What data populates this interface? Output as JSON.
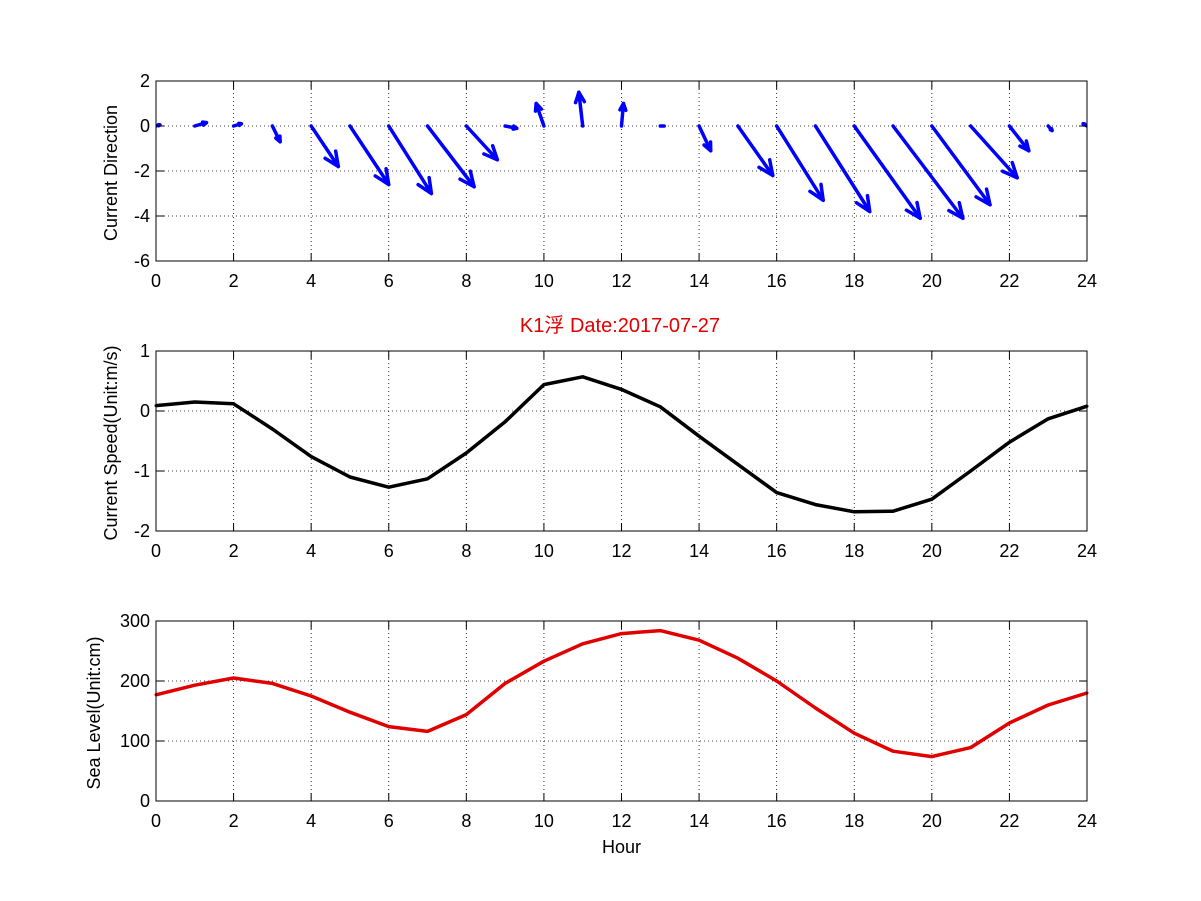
{
  "figure": {
    "title": "K1浮    Date:2017-07-27",
    "title_color": "#e00000"
  },
  "chart_data": [
    {
      "type": "quiver",
      "ylabel": "Current Direction",
      "xlabel": "",
      "xlim": [
        0,
        24
      ],
      "ylim": [
        -6,
        2
      ],
      "xticks": [
        0,
        2,
        4,
        6,
        8,
        10,
        12,
        14,
        16,
        18,
        20,
        22,
        24
      ],
      "yticks": [
        -6,
        -4,
        -2,
        0,
        2
      ],
      "grid": true,
      "color": "#0000ff",
      "x": [
        0,
        1,
        2,
        3,
        4,
        5,
        6,
        7,
        8,
        9,
        10,
        11,
        12,
        13,
        14,
        15,
        16,
        17,
        18,
        19,
        20,
        21,
        22,
        23,
        24
      ],
      "u": [
        0.1,
        0.3,
        0.2,
        0.2,
        0.7,
        1.0,
        1.1,
        1.2,
        0.8,
        0.3,
        -0.2,
        -0.1,
        0.05,
        0.1,
        0.3,
        0.9,
        1.2,
        1.4,
        1.7,
        1.8,
        1.5,
        1.2,
        0.5,
        0.1,
        -0.1
      ],
      "v": [
        0.05,
        0.15,
        0.1,
        -0.7,
        -1.8,
        -2.6,
        -3.0,
        -2.7,
        -1.5,
        -0.1,
        1.0,
        1.5,
        1.0,
        0.0,
        -1.1,
        -2.2,
        -3.3,
        -3.8,
        -4.1,
        -4.1,
        -3.5,
        -2.3,
        -1.1,
        -0.2,
        0.1
      ]
    },
    {
      "type": "line",
      "ylabel": "Current Speed(Unit:m/s)",
      "xlabel": "",
      "xlim": [
        0,
        24
      ],
      "ylim": [
        -2,
        1
      ],
      "xticks": [
        0,
        2,
        4,
        6,
        8,
        10,
        12,
        14,
        16,
        18,
        20,
        22,
        24
      ],
      "yticks": [
        -2,
        -1,
        0,
        1
      ],
      "grid": true,
      "color": "#000000",
      "x": [
        0,
        1,
        2,
        3,
        4,
        5,
        6,
        7,
        8,
        9,
        10,
        11,
        12,
        13,
        14,
        15,
        16,
        17,
        18,
        19,
        20,
        21,
        22,
        23,
        24
      ],
      "values": [
        0.09,
        0.15,
        0.12,
        -0.3,
        -0.76,
        -1.1,
        -1.27,
        -1.13,
        -0.7,
        -0.18,
        0.44,
        0.57,
        0.36,
        0.07,
        -0.42,
        -0.89,
        -1.36,
        -1.56,
        -1.68,
        -1.67,
        -1.47,
        -1.0,
        -0.52,
        -0.13,
        0.08
      ]
    },
    {
      "type": "line",
      "ylabel": "Sea Level(Unit:cm)",
      "xlabel": "Hour",
      "xlim": [
        0,
        24
      ],
      "ylim": [
        0,
        300
      ],
      "xticks": [
        0,
        2,
        4,
        6,
        8,
        10,
        12,
        14,
        16,
        18,
        20,
        22,
        24
      ],
      "yticks": [
        0,
        100,
        200,
        300
      ],
      "grid": true,
      "color": "#e00000",
      "x": [
        0,
        1,
        2,
        3,
        4,
        5,
        6,
        7,
        8,
        9,
        10,
        11,
        12,
        13,
        14,
        15,
        16,
        17,
        18,
        19,
        20,
        21,
        22,
        23,
        24
      ],
      "values": [
        177,
        193,
        205,
        196,
        175,
        148,
        124,
        116,
        144,
        196,
        233,
        262,
        279,
        284,
        268,
        238,
        200,
        155,
        113,
        83,
        74,
        89,
        130,
        160,
        180
      ]
    }
  ]
}
